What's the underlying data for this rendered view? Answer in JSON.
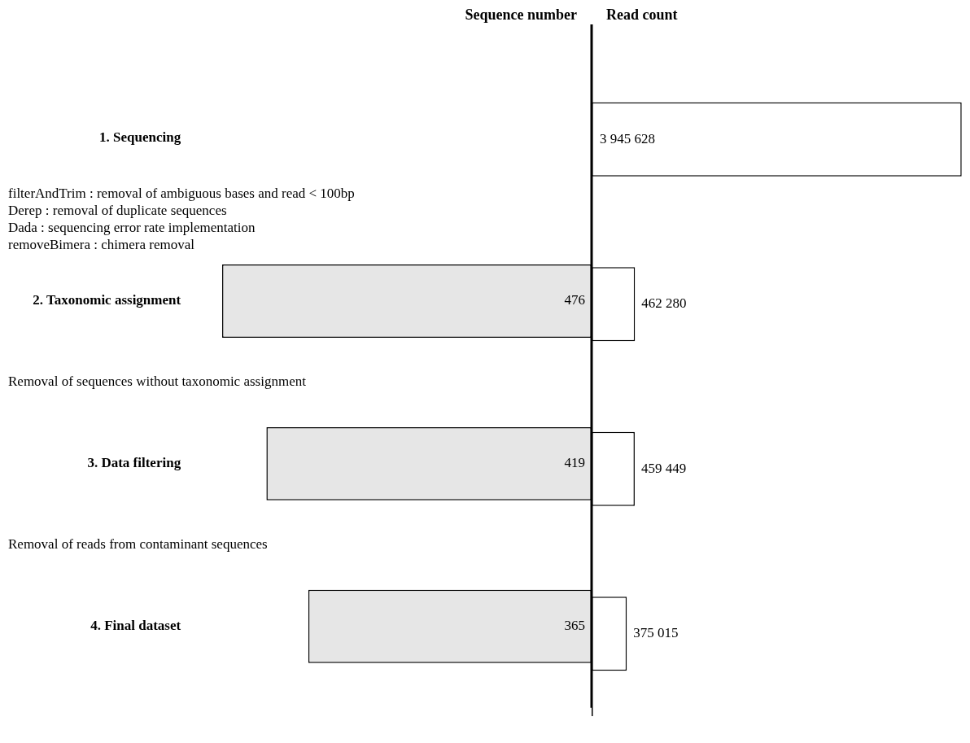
{
  "chart_data": [
    {
      "type": "bar",
      "orientation": "horizontal",
      "title": "Sequence number",
      "categories": [
        "1. Sequencing",
        "2. Taxonomic assignment",
        "3. Data filtering",
        "4. Final dataset"
      ],
      "values": [
        null,
        476,
        419,
        365
      ],
      "color": "#e6e6e6",
      "data_labels": true,
      "tick_labels": "y",
      "annotations": [
        "filterAndTrim : removal of ambiguous bases and read < 100bp\nDerep : removal of duplicate sequences\nDada : sequencing error rate implementation\nremoveBimera : chimera removal",
        "Removal of sequences without taxonomic assignment",
        "Removal of reads from contaminant sequences"
      ]
    },
    {
      "type": "bar",
      "orientation": "horizontal",
      "title": "Read count",
      "categories": [
        null,
        null,
        null,
        null
      ],
      "values": [
        3945628,
        462280,
        459449,
        375015
      ],
      "color": "#ffffff",
      "value_labels": [
        "3 945 628",
        "462 280",
        "459 449",
        "375 015"
      ],
      "tick_labels": false
    }
  ]
}
